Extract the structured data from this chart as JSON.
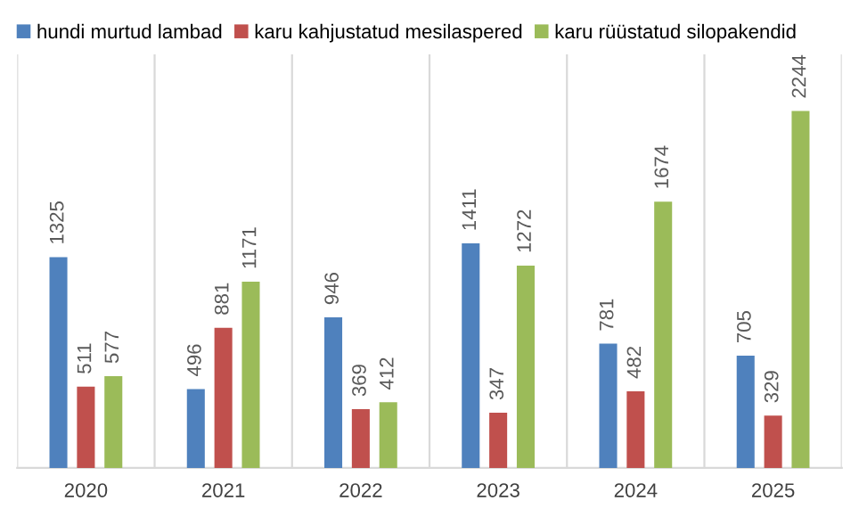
{
  "chart_data": {
    "type": "bar",
    "categories": [
      "2020",
      "2021",
      "2022",
      "2023",
      "2024",
      "2025"
    ],
    "series": [
      {
        "name": "hundi murtud lambad",
        "color": "#4f81bd",
        "values": [
          1325,
          496,
          946,
          1411,
          781,
          705
        ]
      },
      {
        "name": "karu kahjustatud mesilaspered",
        "color": "#c0504d",
        "values": [
          511,
          881,
          369,
          347,
          482,
          329
        ]
      },
      {
        "name": "karu rüüstatud silopakendid",
        "color": "#9bbb59",
        "values": [
          577,
          1171,
          412,
          1272,
          1674,
          2244
        ]
      }
    ],
    "ylim": [
      0,
      2600
    ],
    "data_labels": true,
    "legend": "top left",
    "grid": "x",
    "tick_labels": "x"
  }
}
